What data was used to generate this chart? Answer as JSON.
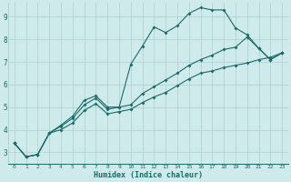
{
  "xlabel": "Humidex (Indice chaleur)",
  "bg_color": "#ceeaea",
  "line_color": "#1a6b6b",
  "grid_color": "#afd4d4",
  "axis_label_color": "#1a6b6b",
  "xlim": [
    -0.5,
    23.5
  ],
  "ylim": [
    2.5,
    9.6
  ],
  "yticks": [
    3,
    4,
    5,
    6,
    7,
    8,
    9
  ],
  "xticks": [
    0,
    1,
    2,
    3,
    4,
    5,
    6,
    7,
    8,
    9,
    10,
    11,
    12,
    13,
    14,
    15,
    16,
    17,
    18,
    19,
    20,
    21,
    22,
    23
  ],
  "series": [
    [
      3.4,
      2.8,
      2.9,
      3.85,
      4.2,
      4.6,
      5.3,
      5.5,
      5.0,
      5.0,
      6.9,
      7.7,
      8.55,
      8.3,
      8.6,
      9.15,
      9.4,
      9.3,
      9.3,
      8.5,
      8.2,
      7.6,
      7.1,
      7.4
    ],
    [
      3.4,
      2.8,
      2.9,
      3.85,
      4.15,
      4.5,
      5.1,
      5.4,
      4.9,
      5.0,
      5.1,
      5.6,
      5.9,
      6.2,
      6.5,
      6.85,
      7.1,
      7.3,
      7.55,
      7.65,
      8.1,
      7.6,
      7.1,
      7.4
    ],
    [
      3.4,
      2.8,
      2.9,
      3.85,
      4.0,
      4.3,
      4.85,
      5.15,
      4.7,
      4.8,
      4.9,
      5.2,
      5.45,
      5.65,
      5.95,
      6.25,
      6.5,
      6.6,
      6.75,
      6.85,
      6.95,
      7.1,
      7.2,
      7.4
    ]
  ]
}
